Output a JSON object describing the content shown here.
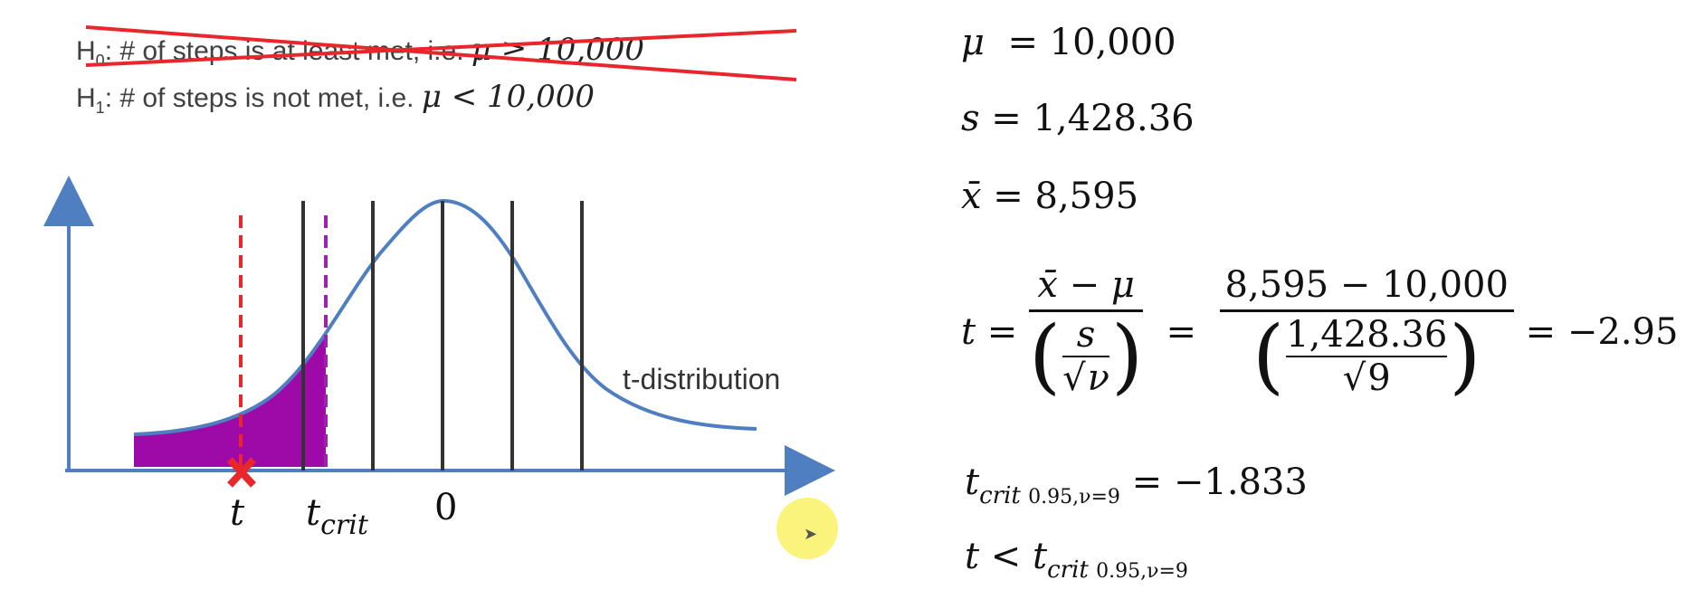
{
  "hypotheses": {
    "h0": {
      "prefix": "H",
      "sub": "0",
      "text": ": # of steps is at least met, i.e. ",
      "math": "μ ≥ 10,000"
    },
    "h1": {
      "prefix": "H",
      "sub": "1",
      "text": ": # of steps is not met, i.e. ",
      "math": "μ < 10,000"
    }
  },
  "diagram": {
    "curve_label": "t-distribution",
    "label_t": "t",
    "label_tcrit_main": "t",
    "label_tcrit_sub": "crit",
    "label_zero": "0"
  },
  "formulas": {
    "mu_sym": "μ",
    "mu_val": "= 10,000",
    "s_sym": "s",
    "s_val": "= 1,428.36",
    "xbar_sym": "x̄",
    "xbar_val": "= 8,595",
    "t_sym": "t",
    "eq": "=",
    "frac1_num": "x̄ − μ",
    "frac1_inner_num": "s",
    "frac1_inner_den": "ν",
    "frac2_num": "8,595 − 10,000",
    "frac2_inner_num": "1,428.36",
    "frac2_inner_den": "9",
    "t_result": "= −2.95",
    "tcrit_main": "t",
    "tcrit_sub": "crit",
    "tcrit_sub2": "0.95,ν=9",
    "tcrit_val": "= −1.833",
    "conclusion_t": "t",
    "conclusion_op": "<",
    "conclusion_tcrit": "t",
    "conclusion_sub": "crit",
    "conclusion_sub2": "0.95,ν=9"
  },
  "colors": {
    "axis": "#4f7fc0",
    "curve": "#4f7fc0",
    "fill": "#9d0aa8",
    "t_line": "#e8262b",
    "tcrit_line": "#a020b0",
    "grid_line": "#333333",
    "strike": "#e8262b"
  }
}
